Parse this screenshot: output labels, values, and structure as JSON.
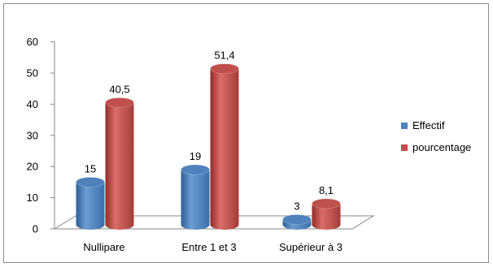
{
  "chart_data": {
    "type": "bar",
    "categories": [
      "Nullipare",
      "Entre 1 et 3",
      "Supérieur à 3"
    ],
    "series": [
      {
        "name": "Effectif",
        "values": [
          15,
          19,
          3
        ],
        "labels": [
          "15",
          "19",
          "3"
        ],
        "color": "#4f81bd"
      },
      {
        "name": "pourcentage",
        "values": [
          40.5,
          51.4,
          8.1
        ],
        "labels": [
          "40,5",
          "51,4",
          "8,1"
        ],
        "color": "#c0504d"
      }
    ],
    "yticks": [
      "0",
      "10",
      "20",
      "30",
      "40",
      "50",
      "60"
    ],
    "ylim": [
      0,
      60
    ],
    "grid": false,
    "legend_position": "right",
    "style": "3d-cylinder"
  }
}
